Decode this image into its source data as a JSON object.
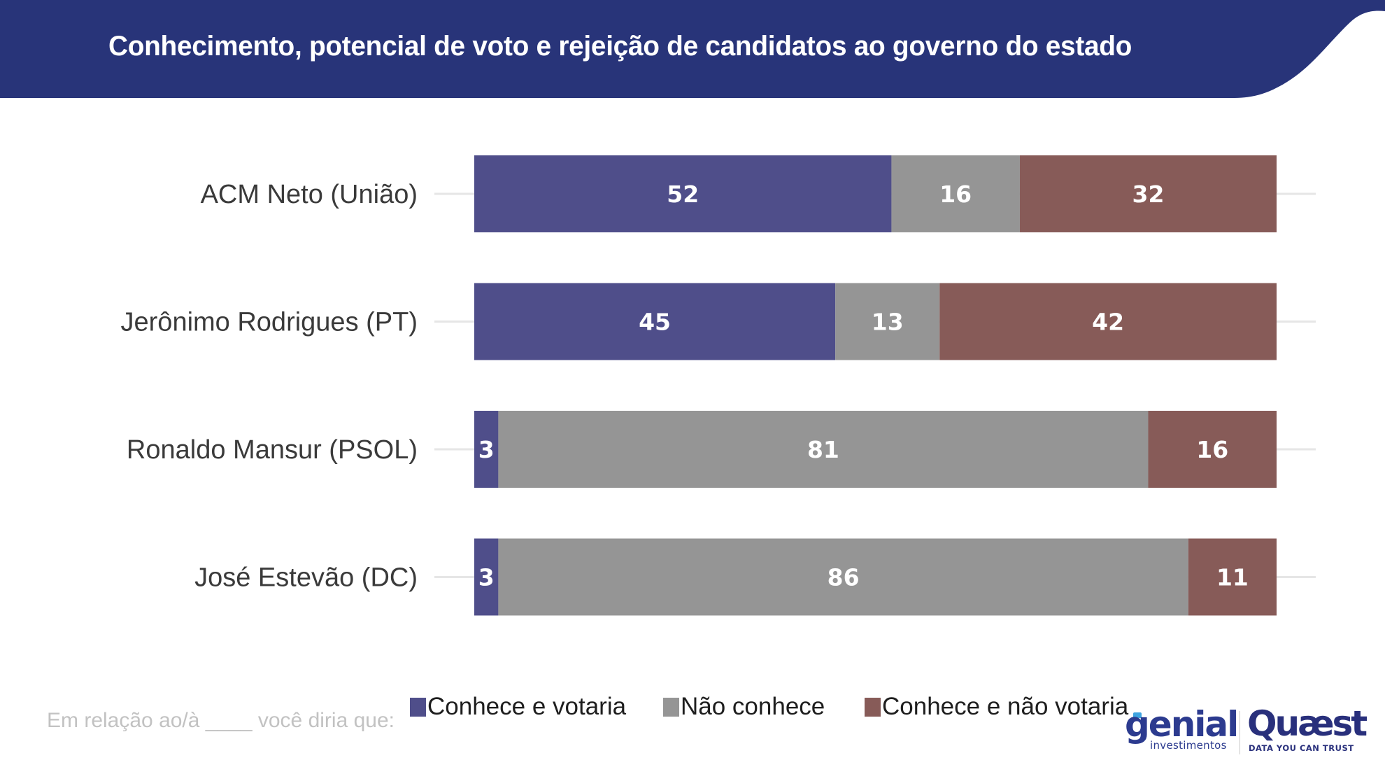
{
  "header": {
    "title": "Conhecimento, potencial de voto e rejeição de candidatos ao governo do estado",
    "background_color": "#283479"
  },
  "chart_data": {
    "type": "bar",
    "orientation": "horizontal",
    "stacked": true,
    "title": "Conhecimento, potencial de voto e rejeição de candidatos ao governo do estado",
    "xlabel": "",
    "ylabel": "",
    "xlim": [
      0,
      100
    ],
    "grid": false,
    "legend_position": "bottom",
    "categories": [
      "ACM Neto (União)",
      "Jerônimo Rodrigues (PT)",
      "Ronaldo Mansur (PSOL)",
      "José Estevão (DC)"
    ],
    "series": [
      {
        "name": "Conhece e votaria",
        "color": "#4f4e8a",
        "values": [
          52,
          45,
          3,
          3
        ]
      },
      {
        "name": "Não conhece",
        "color": "#959595",
        "values": [
          16,
          13,
          81,
          86
        ]
      },
      {
        "name": "Conhece e não votaria",
        "color": "#875b58",
        "values": [
          32,
          42,
          16,
          11
        ]
      }
    ]
  },
  "footnote": "Em relação ao/à ____ você diria que:",
  "logos": {
    "genial": {
      "name": "genial",
      "subtitle": "investimentos"
    },
    "quaest": {
      "name": "Quæst",
      "tagline": "DATA YOU CAN TRUST"
    }
  }
}
